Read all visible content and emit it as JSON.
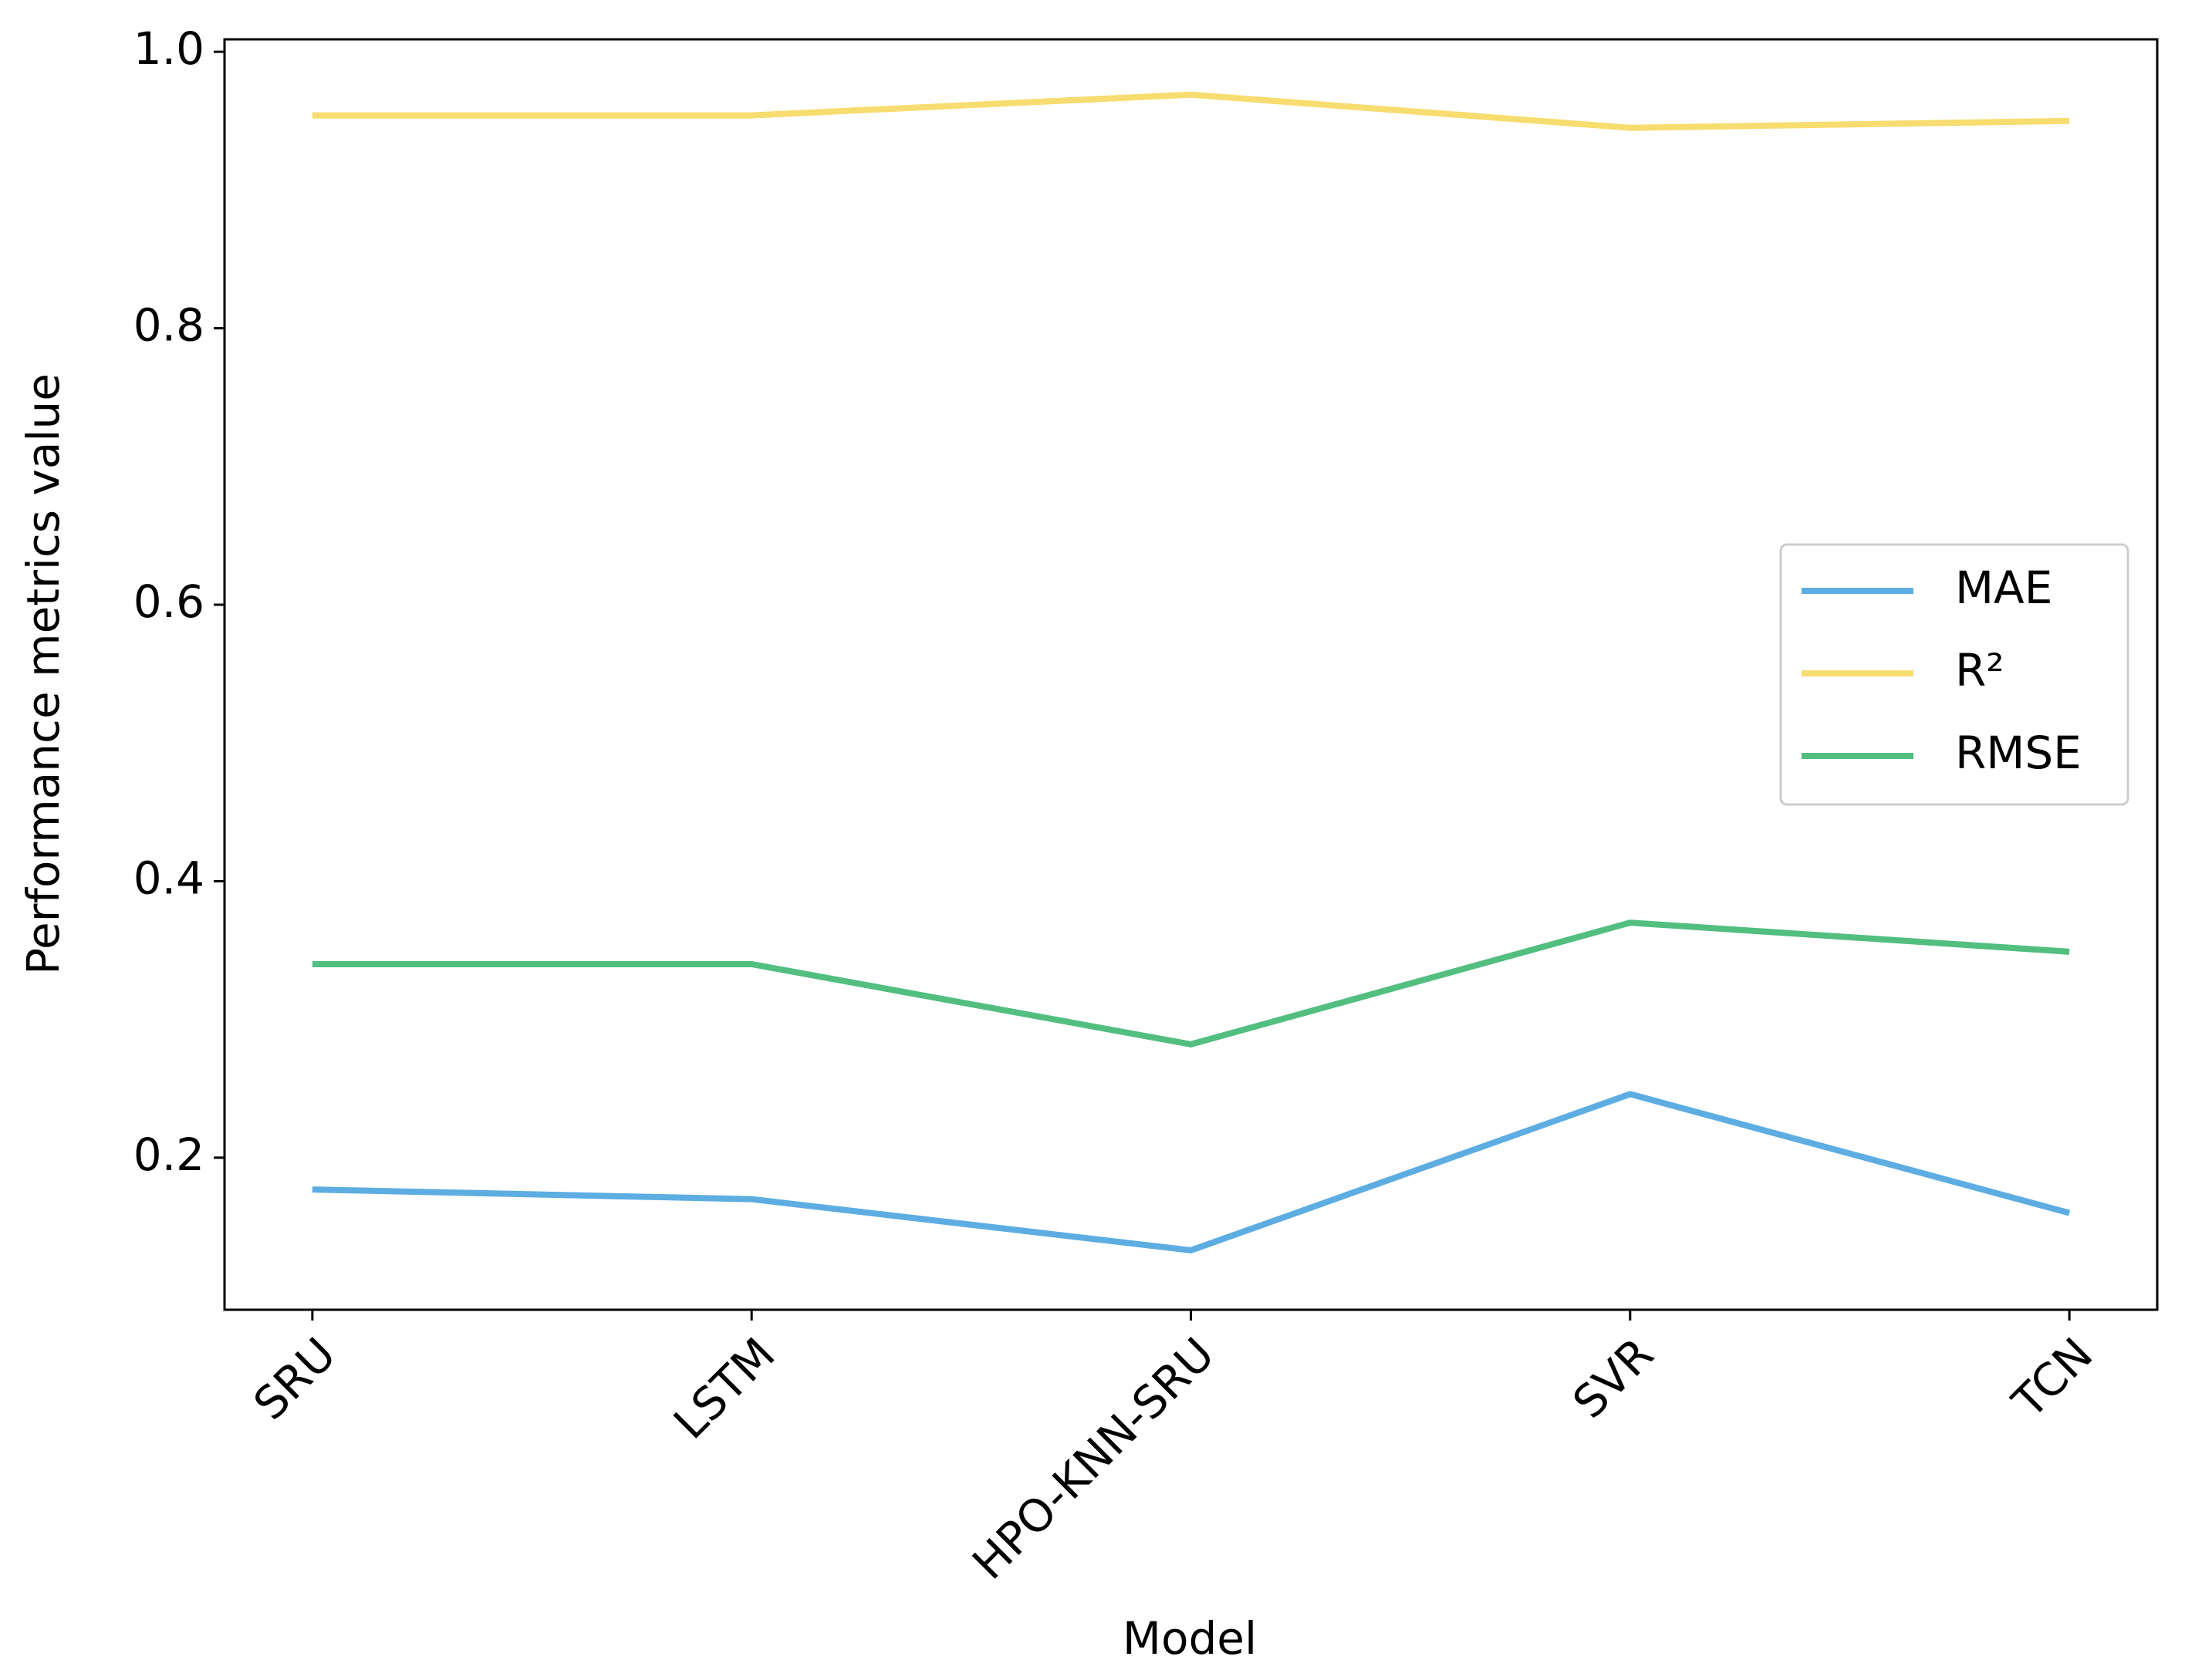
{
  "chart_data": {
    "type": "line",
    "xlabel": "Model",
    "ylabel": "Performance metrics value",
    "categories": [
      "SRU",
      "LSTM",
      "HPO-KNN-SRU",
      "SVR",
      "TCN"
    ],
    "series": [
      {
        "name": "MAE",
        "color": "#5dade2",
        "values": [
          0.177,
          0.17,
          0.133,
          0.246,
          0.16
        ]
      },
      {
        "name": "R²",
        "color": "#f7dc6f",
        "values": [
          0.954,
          0.954,
          0.969,
          0.945,
          0.95
        ]
      },
      {
        "name": "RMSE",
        "color": "#52be80",
        "values": [
          0.34,
          0.34,
          0.282,
          0.37,
          0.349
        ]
      }
    ],
    "ylim": [
      0.09,
      1.009
    ],
    "yticks": [
      0.2,
      0.4,
      0.6,
      0.8,
      {
        "value": 1.0,
        "label": "1.0"
      }
    ],
    "grid": false,
    "legend": "center right"
  }
}
